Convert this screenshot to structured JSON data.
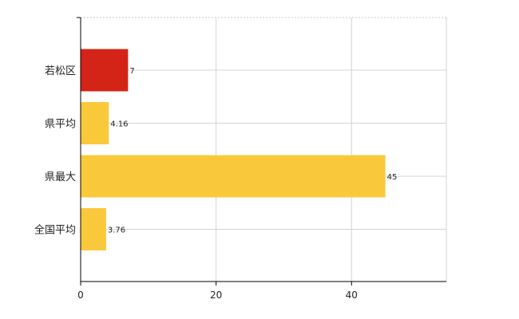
{
  "chart_data": {
    "type": "bar",
    "orientation": "horizontal",
    "categories": [
      "若松区",
      "県平均",
      "県最大",
      "全国平均"
    ],
    "values": [
      7,
      4.16,
      45,
      3.76
    ],
    "data_labels": [
      "7",
      "4.16",
      "45",
      "3.76"
    ],
    "bar_colors": [
      "#d42317",
      "#fac93b",
      "#fac93b",
      "#fac93b"
    ],
    "xlim": [
      0,
      54
    ],
    "x_ticks": [
      0,
      20,
      40
    ],
    "x_tick_labels": [
      "0",
      "20",
      "40"
    ],
    "grid": true,
    "legend": "none"
  }
}
